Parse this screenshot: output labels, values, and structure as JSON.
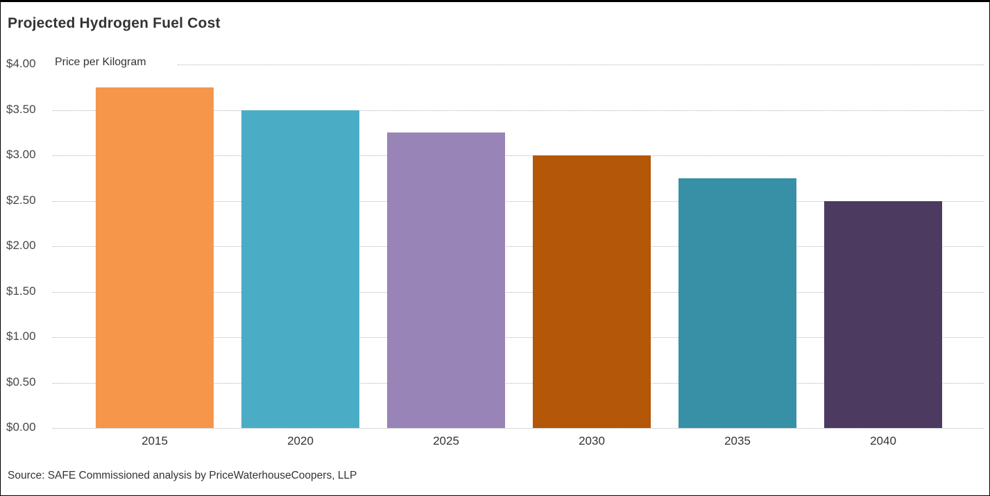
{
  "chart_data": {
    "type": "bar",
    "title": "Projected Hydrogen Fuel Cost",
    "ylabel_note": "Price per Kilogram",
    "categories": [
      "2015",
      "2020",
      "2025",
      "2030",
      "2035",
      "2040"
    ],
    "values": [
      3.75,
      3.5,
      3.25,
      3.0,
      2.75,
      2.5
    ],
    "bar_colors": [
      "#F5964B",
      "#4BACC6",
      "#9884B6",
      "#B45708",
      "#3890A6",
      "#4C3A60"
    ],
    "y_ticks": [
      {
        "value": 4.0,
        "label": "$4.00"
      },
      {
        "value": 3.5,
        "label": "$3.50"
      },
      {
        "value": 3.0,
        "label": "$3.00"
      },
      {
        "value": 2.5,
        "label": "$2.50"
      },
      {
        "value": 2.0,
        "label": "$2.00"
      },
      {
        "value": 1.5,
        "label": "$1.50"
      },
      {
        "value": 1.0,
        "label": "$1.00"
      },
      {
        "value": 0.5,
        "label": "$0.50"
      },
      {
        "value": 0.0,
        "label": "$0.00"
      }
    ],
    "ylim": [
      0,
      4
    ],
    "grid": "horizontal-dotted",
    "legend": "none",
    "source": "Source: SAFE Commissioned analysis by PriceWaterhouseCoopers, LLP"
  },
  "colors": {
    "background": "#ffffff",
    "frame_border": "#000000",
    "gridline": "#b3b3b3",
    "title_text": "#333333",
    "tick_text": "#464646"
  }
}
